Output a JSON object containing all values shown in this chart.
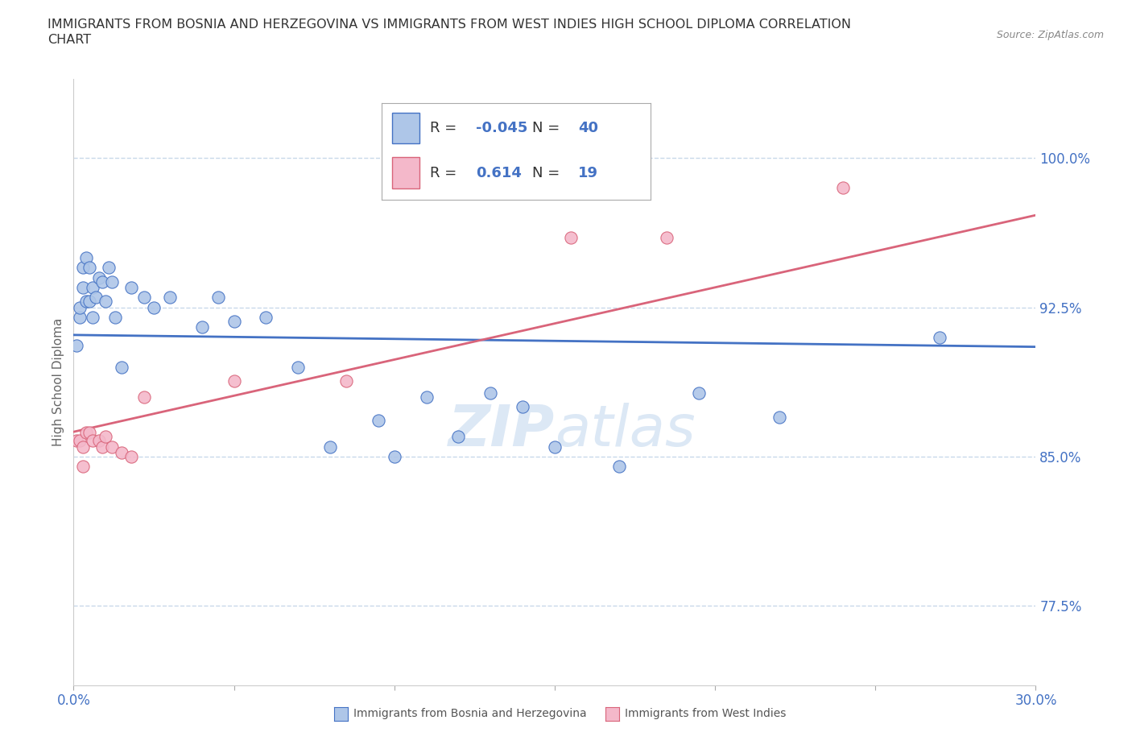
{
  "title_line1": "IMMIGRANTS FROM BOSNIA AND HERZEGOVINA VS IMMIGRANTS FROM WEST INDIES HIGH SCHOOL DIPLOMA CORRELATION",
  "title_line2": "CHART",
  "source": "Source: ZipAtlas.com",
  "ylabel": "High School Diploma",
  "yticks": [
    0.775,
    0.85,
    0.925,
    1.0
  ],
  "ytick_labels": [
    "77.5%",
    "85.0%",
    "92.5%",
    "100.0%"
  ],
  "xmin": 0.0,
  "xmax": 0.3,
  "ymin": 0.735,
  "ymax": 1.04,
  "blue_R": "-0.045",
  "blue_N": "40",
  "pink_R": "0.614",
  "pink_N": "19",
  "blue_color": "#aec6e8",
  "blue_line_color": "#4472c4",
  "pink_color": "#f4b8ca",
  "pink_line_color": "#d9647a",
  "watermark_color": "#dce8f5",
  "background_color": "#ffffff",
  "grid_color": "#c8d8ea",
  "legend_label_blue": "Immigrants from Bosnia and Herzegovina",
  "legend_label_pink": "Immigrants from West Indies",
  "blue_x": [
    0.001,
    0.002,
    0.002,
    0.003,
    0.003,
    0.004,
    0.004,
    0.005,
    0.005,
    0.006,
    0.006,
    0.007,
    0.008,
    0.009,
    0.01,
    0.011,
    0.012,
    0.013,
    0.015,
    0.018,
    0.022,
    0.025,
    0.03,
    0.04,
    0.045,
    0.05,
    0.06,
    0.07,
    0.08,
    0.095,
    0.1,
    0.11,
    0.12,
    0.13,
    0.14,
    0.15,
    0.17,
    0.195,
    0.22,
    0.27
  ],
  "blue_y": [
    0.906,
    0.92,
    0.925,
    0.935,
    0.945,
    0.928,
    0.95,
    0.928,
    0.945,
    0.92,
    0.935,
    0.93,
    0.94,
    0.938,
    0.928,
    0.945,
    0.938,
    0.92,
    0.895,
    0.935,
    0.93,
    0.925,
    0.93,
    0.915,
    0.93,
    0.918,
    0.92,
    0.895,
    0.855,
    0.868,
    0.85,
    0.88,
    0.86,
    0.882,
    0.875,
    0.855,
    0.845,
    0.882,
    0.87,
    0.91
  ],
  "pink_x": [
    0.001,
    0.002,
    0.003,
    0.003,
    0.004,
    0.005,
    0.006,
    0.008,
    0.009,
    0.01,
    0.012,
    0.015,
    0.018,
    0.022,
    0.05,
    0.085,
    0.155,
    0.185,
    0.24
  ],
  "pink_y": [
    0.858,
    0.858,
    0.845,
    0.855,
    0.862,
    0.862,
    0.858,
    0.858,
    0.855,
    0.86,
    0.855,
    0.852,
    0.85,
    0.88,
    0.888,
    0.888,
    0.96,
    0.96,
    0.985
  ]
}
